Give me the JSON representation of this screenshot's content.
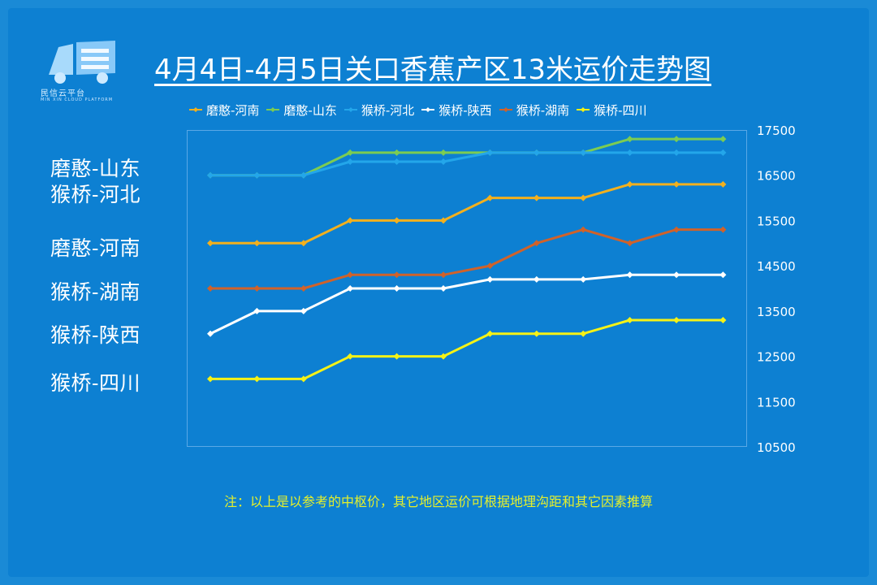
{
  "title": "4月4日-4月5日关口香蕉产区13米运价走势图",
  "logo": {
    "name": "民信云平台",
    "subtitle": "MIN XIN CLOUD PLATFORM"
  },
  "side_labels": [
    "磨憨-山东",
    "猴桥-河北",
    "磨憨-河南",
    "猴桥-湖南",
    "猴桥-陕西",
    "猴桥-四川"
  ],
  "note": "注：以上是以参考的中枢价，其它地区运价可根据地理沟距和其它因素推算",
  "chart_data": {
    "type": "line",
    "x": [
      1,
      2,
      3,
      4,
      5,
      6,
      7,
      8,
      9,
      10,
      11,
      12
    ],
    "ylim": [
      10500,
      17500
    ],
    "yticks": [
      10500,
      11500,
      12500,
      13500,
      14500,
      15500,
      16500,
      17500
    ],
    "legend_position": "top",
    "grid": false,
    "series": [
      {
        "name": "磨憨-河南",
        "color": "#f2b01e",
        "values": [
          15000,
          15000,
          15000,
          15500,
          15500,
          15500,
          16000,
          16000,
          16000,
          16300,
          16300,
          16300
        ]
      },
      {
        "name": "磨憨-山东",
        "color": "#7ccc52",
        "values": [
          16500,
          16500,
          16500,
          17000,
          17000,
          17000,
          17000,
          17000,
          17000,
          17300,
          17300,
          17300
        ]
      },
      {
        "name": "猴桥-河北",
        "color": "#23a6ea",
        "values": [
          16500,
          16500,
          16500,
          16800,
          16800,
          16800,
          17000,
          17000,
          17000,
          17000,
          17000,
          17000
        ]
      },
      {
        "name": "猴桥-陕西",
        "color": "#ffffff",
        "values": [
          13000,
          13500,
          13500,
          14000,
          14000,
          14000,
          14200,
          14200,
          14200,
          14300,
          14300,
          14300
        ]
      },
      {
        "name": "猴桥-湖南",
        "color": "#d0622a",
        "values": [
          14000,
          14000,
          14000,
          14300,
          14300,
          14300,
          14500,
          15000,
          15300,
          15000,
          15300,
          15300
        ]
      },
      {
        "name": "猴桥-四川",
        "color": "#f5f216",
        "values": [
          12000,
          12000,
          12000,
          12500,
          12500,
          12500,
          13000,
          13000,
          13000,
          13300,
          13300,
          13300
        ]
      }
    ]
  }
}
